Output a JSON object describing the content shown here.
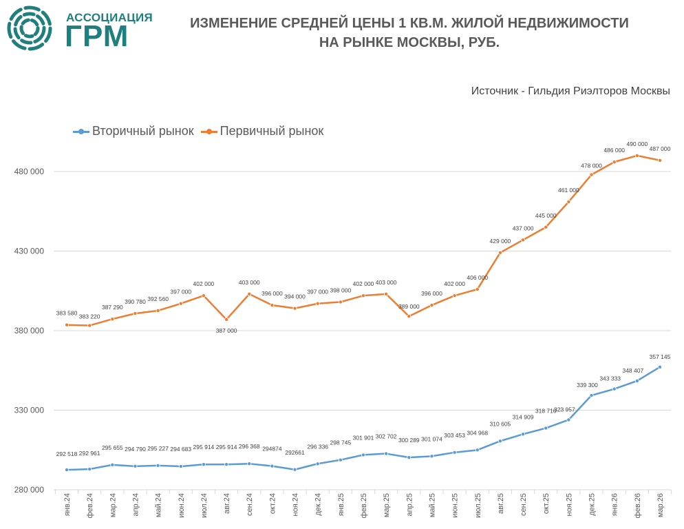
{
  "logo": {
    "small_text": "АССОЦИАЦИЯ",
    "big_text": "ГРМ"
  },
  "header": {
    "title_line1": "ИЗМЕНЕНИЕ СРЕДНЕЙ ЦЕНЫ 1 КВ.М. ЖИЛОЙ НЕДВИЖИМОСТИ",
    "title_line2": "НА РЫНКЕ МОСКВЫ, РУБ."
  },
  "source_text": "Источник - Гильдия Риэлторов Москвы",
  "colors": {
    "secondary": "#5b9bd5",
    "primary": "#ed7d31",
    "grid": "#d9d9d9",
    "text": "#595959",
    "logo": "#1f7f7f"
  },
  "chart_data": {
    "type": "line",
    "title": "ИЗМЕНЕНИЕ СРЕДНЕЙ ЦЕНЫ 1 КВ.М. ЖИЛОЙ НЕДВИЖИМОСТИ НА РЫНКЕ МОСКВЫ, РУБ.",
    "xlabel": "",
    "ylabel": "",
    "ylim": [
      280000,
      500000
    ],
    "yticks": [
      280000,
      330000,
      380000,
      430000,
      480000
    ],
    "ytick_labels": [
      "280 000",
      "330 000",
      "380 000",
      "430 000",
      "480 000"
    ],
    "categories": [
      "янв.24",
      "фев.24",
      "мар.24",
      "апр.24",
      "май.24",
      "июн.24",
      "июл.24",
      "авг.24",
      "сен.24",
      "окт.24",
      "ноя.24",
      "дек.24",
      "янв.25",
      "фев.25",
      "мар.25",
      "апр.25",
      "май.25",
      "июн.25",
      "июл.25",
      "авг.25",
      "сен.25",
      "окт.25",
      "ноя.25",
      "дек.25",
      "янв.26",
      "фев.26",
      "мар.26"
    ],
    "legend_position": "top-left",
    "series": [
      {
        "name": "Вторичный рынок",
        "color": "#5b9bd5",
        "values": [
          292518,
          292961,
          295655,
          294790,
          295227,
          294683,
          295914,
          295914,
          296368,
          294874,
          292661,
          296336,
          298745,
          301901,
          302702,
          300289,
          301074,
          303453,
          304968,
          310605,
          314909,
          318710,
          323957,
          339300,
          343333,
          348407,
          357145
        ],
        "labels": [
          "292 518",
          "292 961",
          "295 655",
          "294 790",
          "295 227",
          "294 683",
          "295 914",
          "295 914",
          "296 368",
          "294874",
          "292661",
          "296 336",
          "298 745",
          "301 901",
          "302 702",
          "300 289",
          "301 074",
          "303 453",
          "304 968",
          "310 605",
          "314 909",
          "318 710",
          "323 957",
          "339 300",
          "343 333",
          "348 407",
          "357 145"
        ]
      },
      {
        "name": "Первичный рынок",
        "color": "#ed7d31",
        "values": [
          383580,
          383220,
          387290,
          390780,
          392560,
          397000,
          402000,
          387000,
          403000,
          396000,
          394000,
          397000,
          398000,
          402000,
          403000,
          389000,
          396000,
          402000,
          406000,
          429000,
          437000,
          445000,
          461000,
          478000,
          486000,
          490000,
          487000
        ],
        "labels": [
          "383 580",
          "383 220",
          "387 290",
          "390 780",
          "392 560",
          "397 000",
          "402 000",
          "387 000",
          "403 000",
          "396 000",
          "394 000",
          "397 000",
          "398 000",
          "402 000",
          "403 000",
          "389 000",
          "396 000",
          "402 000",
          "406 000",
          "429 000",
          "437 000",
          "445 000",
          "461 000",
          "478 000",
          "486 000",
          "490 000",
          "487 000"
        ]
      }
    ]
  }
}
